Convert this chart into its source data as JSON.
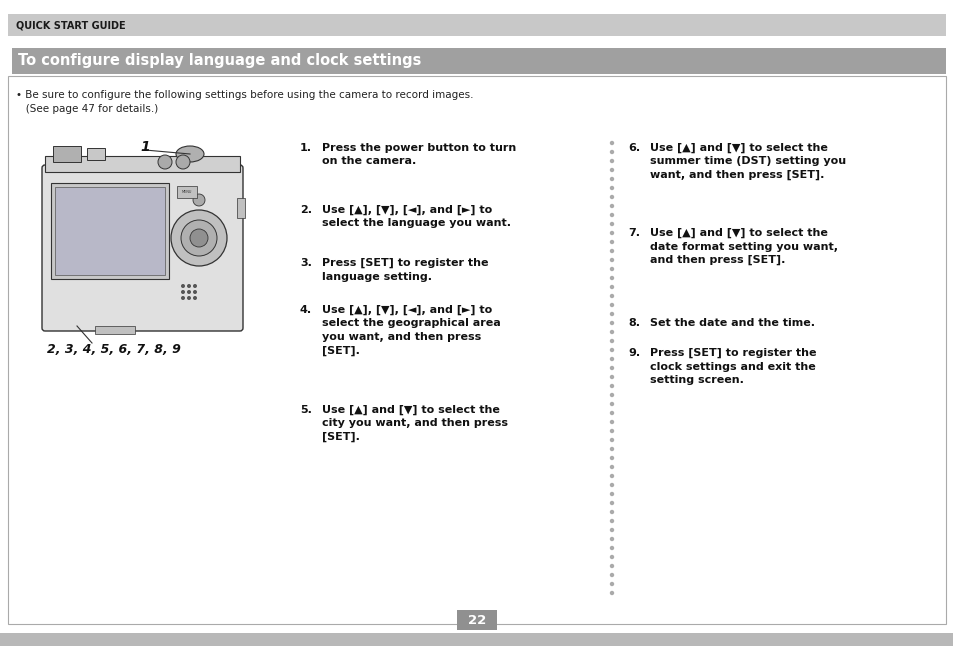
{
  "page_bg": "#ffffff",
  "outer_bg": "#d0d0d0",
  "header_bg": "#c8c8c8",
  "header_text": "QUICK START GUIDE",
  "header_text_color": "#1a1a1a",
  "title_bg": "#a0a0a0",
  "title_text": "To configure display language and clock settings",
  "title_text_color": "#ffffff",
  "intro_line1": "• Be sure to configure the following settings before using the camera to record images.",
  "intro_line2": "   (See page 47 for details.)",
  "steps_left": [
    {
      "num": "1.",
      "text": "Press the power button to turn\non the camera."
    },
    {
      "num": "2.",
      "text": "Use [▲], [▼], [◄], and [►] to\nselect the language you want."
    },
    {
      "num": "3.",
      "text": "Press [SET] to register the\nlanguage setting."
    },
    {
      "num": "4.",
      "text": "Use [▲], [▼], [◄], and [►] to\nselect the geographical area\nyou want, and then press\n[SET]."
    },
    {
      "num": "5.",
      "text": "Use [▲] and [▼] to select the\ncity you want, and then press\n[SET]."
    }
  ],
  "steps_right": [
    {
      "num": "6.",
      "text": "Use [▲] and [▼] to select the\nsummer time (DST) setting you\nwant, and then press [SET]."
    },
    {
      "num": "7.",
      "text": "Use [▲] and [▼] to select the\ndate format setting you want,\nand then press [SET]."
    },
    {
      "num": "8.",
      "text": "Set the date and the time."
    },
    {
      "num": "9.",
      "text": "Press [SET] to register the\nclock settings and exit the\nsetting screen."
    }
  ],
  "label_1": "1",
  "label_2349": "2, 3, 4, 5, 6, 7, 8, 9",
  "page_number": "22",
  "page_number_bg": "#909090",
  "page_number_color": "#ffffff",
  "dot_color": "#aaaaaa",
  "border_color": "#aaaaaa"
}
